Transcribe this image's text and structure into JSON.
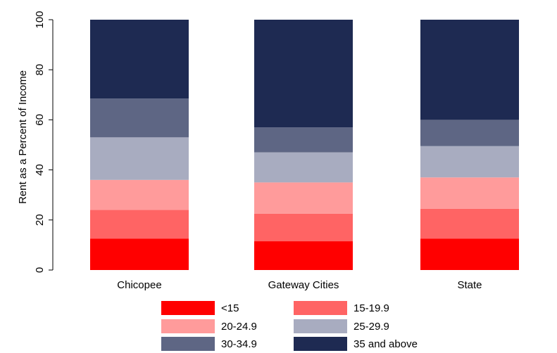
{
  "chart_data": {
    "type": "bar",
    "stacked": true,
    "categories": [
      "Chicopee",
      "Gateway Cities",
      "State"
    ],
    "series": [
      {
        "name": "<15",
        "color": "#ff0000",
        "values": [
          12.5,
          11.5,
          12.5
        ]
      },
      {
        "name": "15-19.9",
        "color": "#ff6464",
        "values": [
          11.5,
          11.0,
          12.0
        ]
      },
      {
        "name": "20-24.9",
        "color": "#ff9b9b",
        "values": [
          12.0,
          12.5,
          12.5
        ]
      },
      {
        "name": "25-29.9",
        "color": "#a8acc0",
        "values": [
          17.0,
          12.0,
          12.5
        ]
      },
      {
        "name": "30-34.9",
        "color": "#5e6684",
        "values": [
          15.5,
          10.0,
          10.5
        ]
      },
      {
        "name": "35 and above",
        "color": "#1e2a52",
        "values": [
          31.5,
          43.0,
          40.0
        ]
      }
    ],
    "title": "",
    "xlabel": "",
    "ylabel": "Rent as a Percent of Income",
    "ylim": [
      0,
      100
    ],
    "yticks": [
      0,
      20,
      40,
      60,
      80,
      100
    ],
    "grid": false,
    "legend_position": "bottom"
  }
}
